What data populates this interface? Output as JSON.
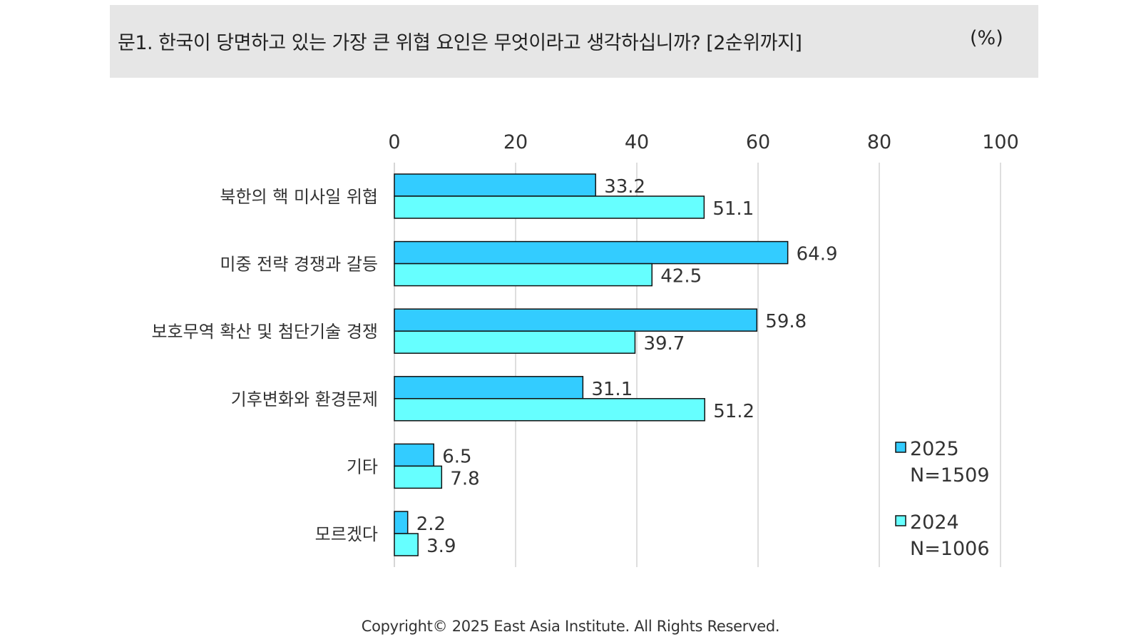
{
  "header": {
    "question": "문1. 한국이 당면하고 있는 가장 큰 위협 요인은 무엇이라고 생각하십니까? [2순위까지]",
    "unit": "(%)"
  },
  "footer": {
    "copyright": "Copyright© 2025 East Asia Institute. All Rights Reserved."
  },
  "chart_data": {
    "type": "bar",
    "orientation": "horizontal",
    "categories": [
      "북한의 핵 미사일 위협",
      "미중 전략 경쟁과 갈등",
      "보호무역 확산 및 첨단기술 경쟁",
      "기후변화와 환경문제",
      "기타",
      "모르겠다"
    ],
    "series": [
      {
        "name": "2025",
        "legend_sub": "N=1509",
        "color": "#33ccff",
        "values": [
          33.2,
          64.9,
          59.8,
          31.1,
          6.5,
          2.2
        ]
      },
      {
        "name": "2024",
        "legend_sub": "N=1006",
        "color": "#66ffff",
        "values": [
          51.1,
          42.5,
          39.7,
          51.2,
          7.8,
          3.9
        ]
      }
    ],
    "xlim": [
      0,
      100
    ],
    "xticks": [
      0,
      20,
      40,
      60,
      80,
      100
    ],
    "x_axis_position": "top",
    "grid": true,
    "data_labels": true,
    "legend_position": "bottom-right"
  }
}
